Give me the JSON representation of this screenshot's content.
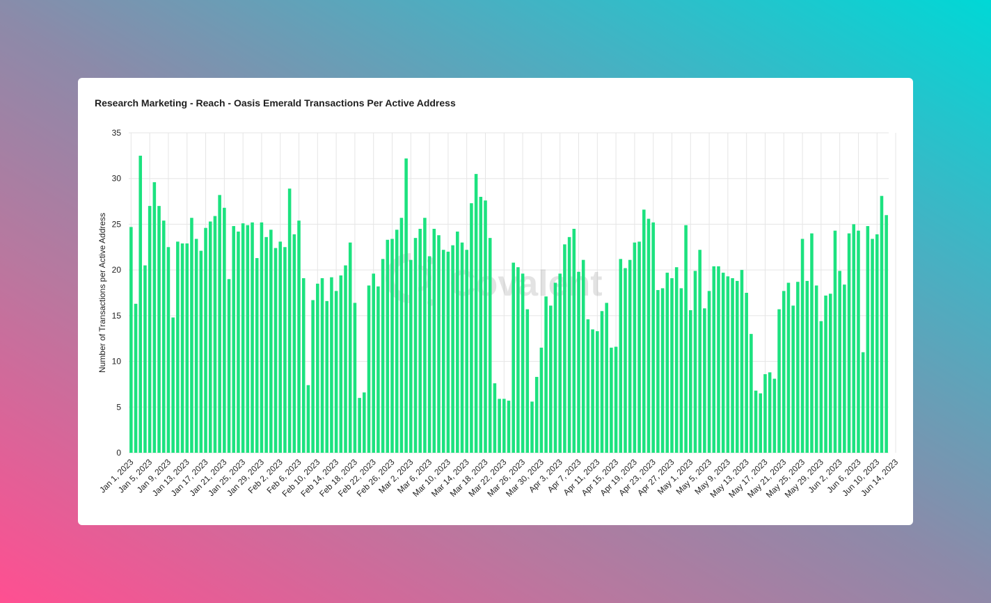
{
  "card": {
    "title": "Research Marketing - Reach - Oasis Emerald Transactions Per Active Address"
  },
  "watermark": {
    "text": "Covalent",
    "icon": "covalent-logo"
  },
  "colors": {
    "bar": "#1ce27f",
    "grid": "#e5e5e5",
    "text": "#1f1f1f"
  },
  "chart_data": {
    "type": "bar",
    "title": "Research Marketing - Reach - Oasis Emerald Transactions Per Active Address",
    "xlabel": "",
    "ylabel": "Number of Transactions per Active Address",
    "ylim": [
      0,
      35
    ],
    "yticks": [
      0,
      5,
      10,
      15,
      20,
      25,
      30,
      35
    ],
    "grid": true,
    "legend": "none",
    "start_date": "2023-01-01",
    "x_tick_labels": [
      "Jan 1, 2023",
      "Jan 5, 2023",
      "Jan 9, 2023",
      "Jan 13, 2023",
      "Jan 17, 2023",
      "Jan 21, 2023",
      "Jan 25, 2023",
      "Jan 29, 2023",
      "Feb 2, 2023",
      "Feb 6, 2023",
      "Feb 10, 2023",
      "Feb 14, 2023",
      "Feb 18, 2023",
      "Feb 22, 2023",
      "Feb 26, 2023",
      "Mar 2, 2023",
      "Mar 6, 2023",
      "Mar 10, 2023",
      "Mar 14, 2023",
      "Mar 18, 2023",
      "Mar 22, 2023",
      "Mar 26, 2023",
      "Mar 30, 2023",
      "Apr 3, 2023",
      "Apr 7, 2023",
      "Apr 11, 2023",
      "Apr 15, 2023",
      "Apr 19, 2023",
      "Apr 23, 2023",
      "Apr 27, 2023",
      "May 1, 2023",
      "May 5, 2023",
      "May 9, 2023",
      "May 13, 2023",
      "May 17, 2023",
      "May 21, 2023",
      "May 25, 2023",
      "May 29, 2023",
      "Jun 2, 2023",
      "Jun 6, 2023",
      "Jun 10, 2023",
      "Jun 14, 2023"
    ],
    "values": [
      24.7,
      16.3,
      32.5,
      20.5,
      27,
      29.6,
      27,
      25.4,
      22.5,
      14.8,
      23.1,
      22.9,
      22.9,
      25.7,
      23.4,
      22.1,
      24.6,
      25.3,
      25.9,
      28.2,
      26.8,
      19,
      24.8,
      24.2,
      25.1,
      24.9,
      25.2,
      21.3,
      25.2,
      23.6,
      24.4,
      22.4,
      23.1,
      22.5,
      28.9,
      23.9,
      25.4,
      19.1,
      7.4,
      16.7,
      18.5,
      19.1,
      16.6,
      19.2,
      17.7,
      19.4,
      20.5,
      23,
      16.4,
      6,
      6.6,
      18.3,
      19.6,
      18.2,
      21.2,
      23.3,
      23.4,
      24.4,
      25.7,
      32.2,
      21.1,
      23.5,
      24.5,
      25.7,
      21.5,
      24.5,
      23.8,
      22.2,
      22,
      22.7,
      24.2,
      23,
      22.2,
      27.3,
      30.5,
      28,
      27.6,
      23.5,
      7.6,
      5.9,
      5.9,
      5.7,
      20.8,
      20.3,
      19.6,
      15.7,
      5.6,
      8.3,
      11.5,
      17.1,
      16.1,
      18.6,
      19.6,
      22.8,
      23.6,
      24.5,
      19.8,
      21.1,
      14.6,
      13.5,
      13.3,
      15.5,
      16.4,
      11.5,
      11.6,
      21.2,
      20.2,
      21.1,
      23,
      23.1,
      26.6,
      25.6,
      25.2,
      17.8,
      18,
      19.7,
      19.1,
      20.3,
      18,
      24.9,
      15.6,
      19.9,
      22.2,
      15.8,
      17.7,
      20.4,
      20.4,
      19.7,
      19.3,
      19.1,
      18.8,
      20,
      17.5,
      13,
      6.8,
      6.5,
      8.6,
      8.8,
      8.1,
      15.7,
      17.7,
      18.6,
      16.1,
      18.7,
      23.4,
      18.8,
      24,
      18.3,
      14.4,
      17.2,
      17.4,
      24.3,
      19.9,
      18.4,
      24,
      25,
      24.3,
      11,
      24.8,
      23.4,
      23.9,
      28.1,
      26
    ]
  }
}
